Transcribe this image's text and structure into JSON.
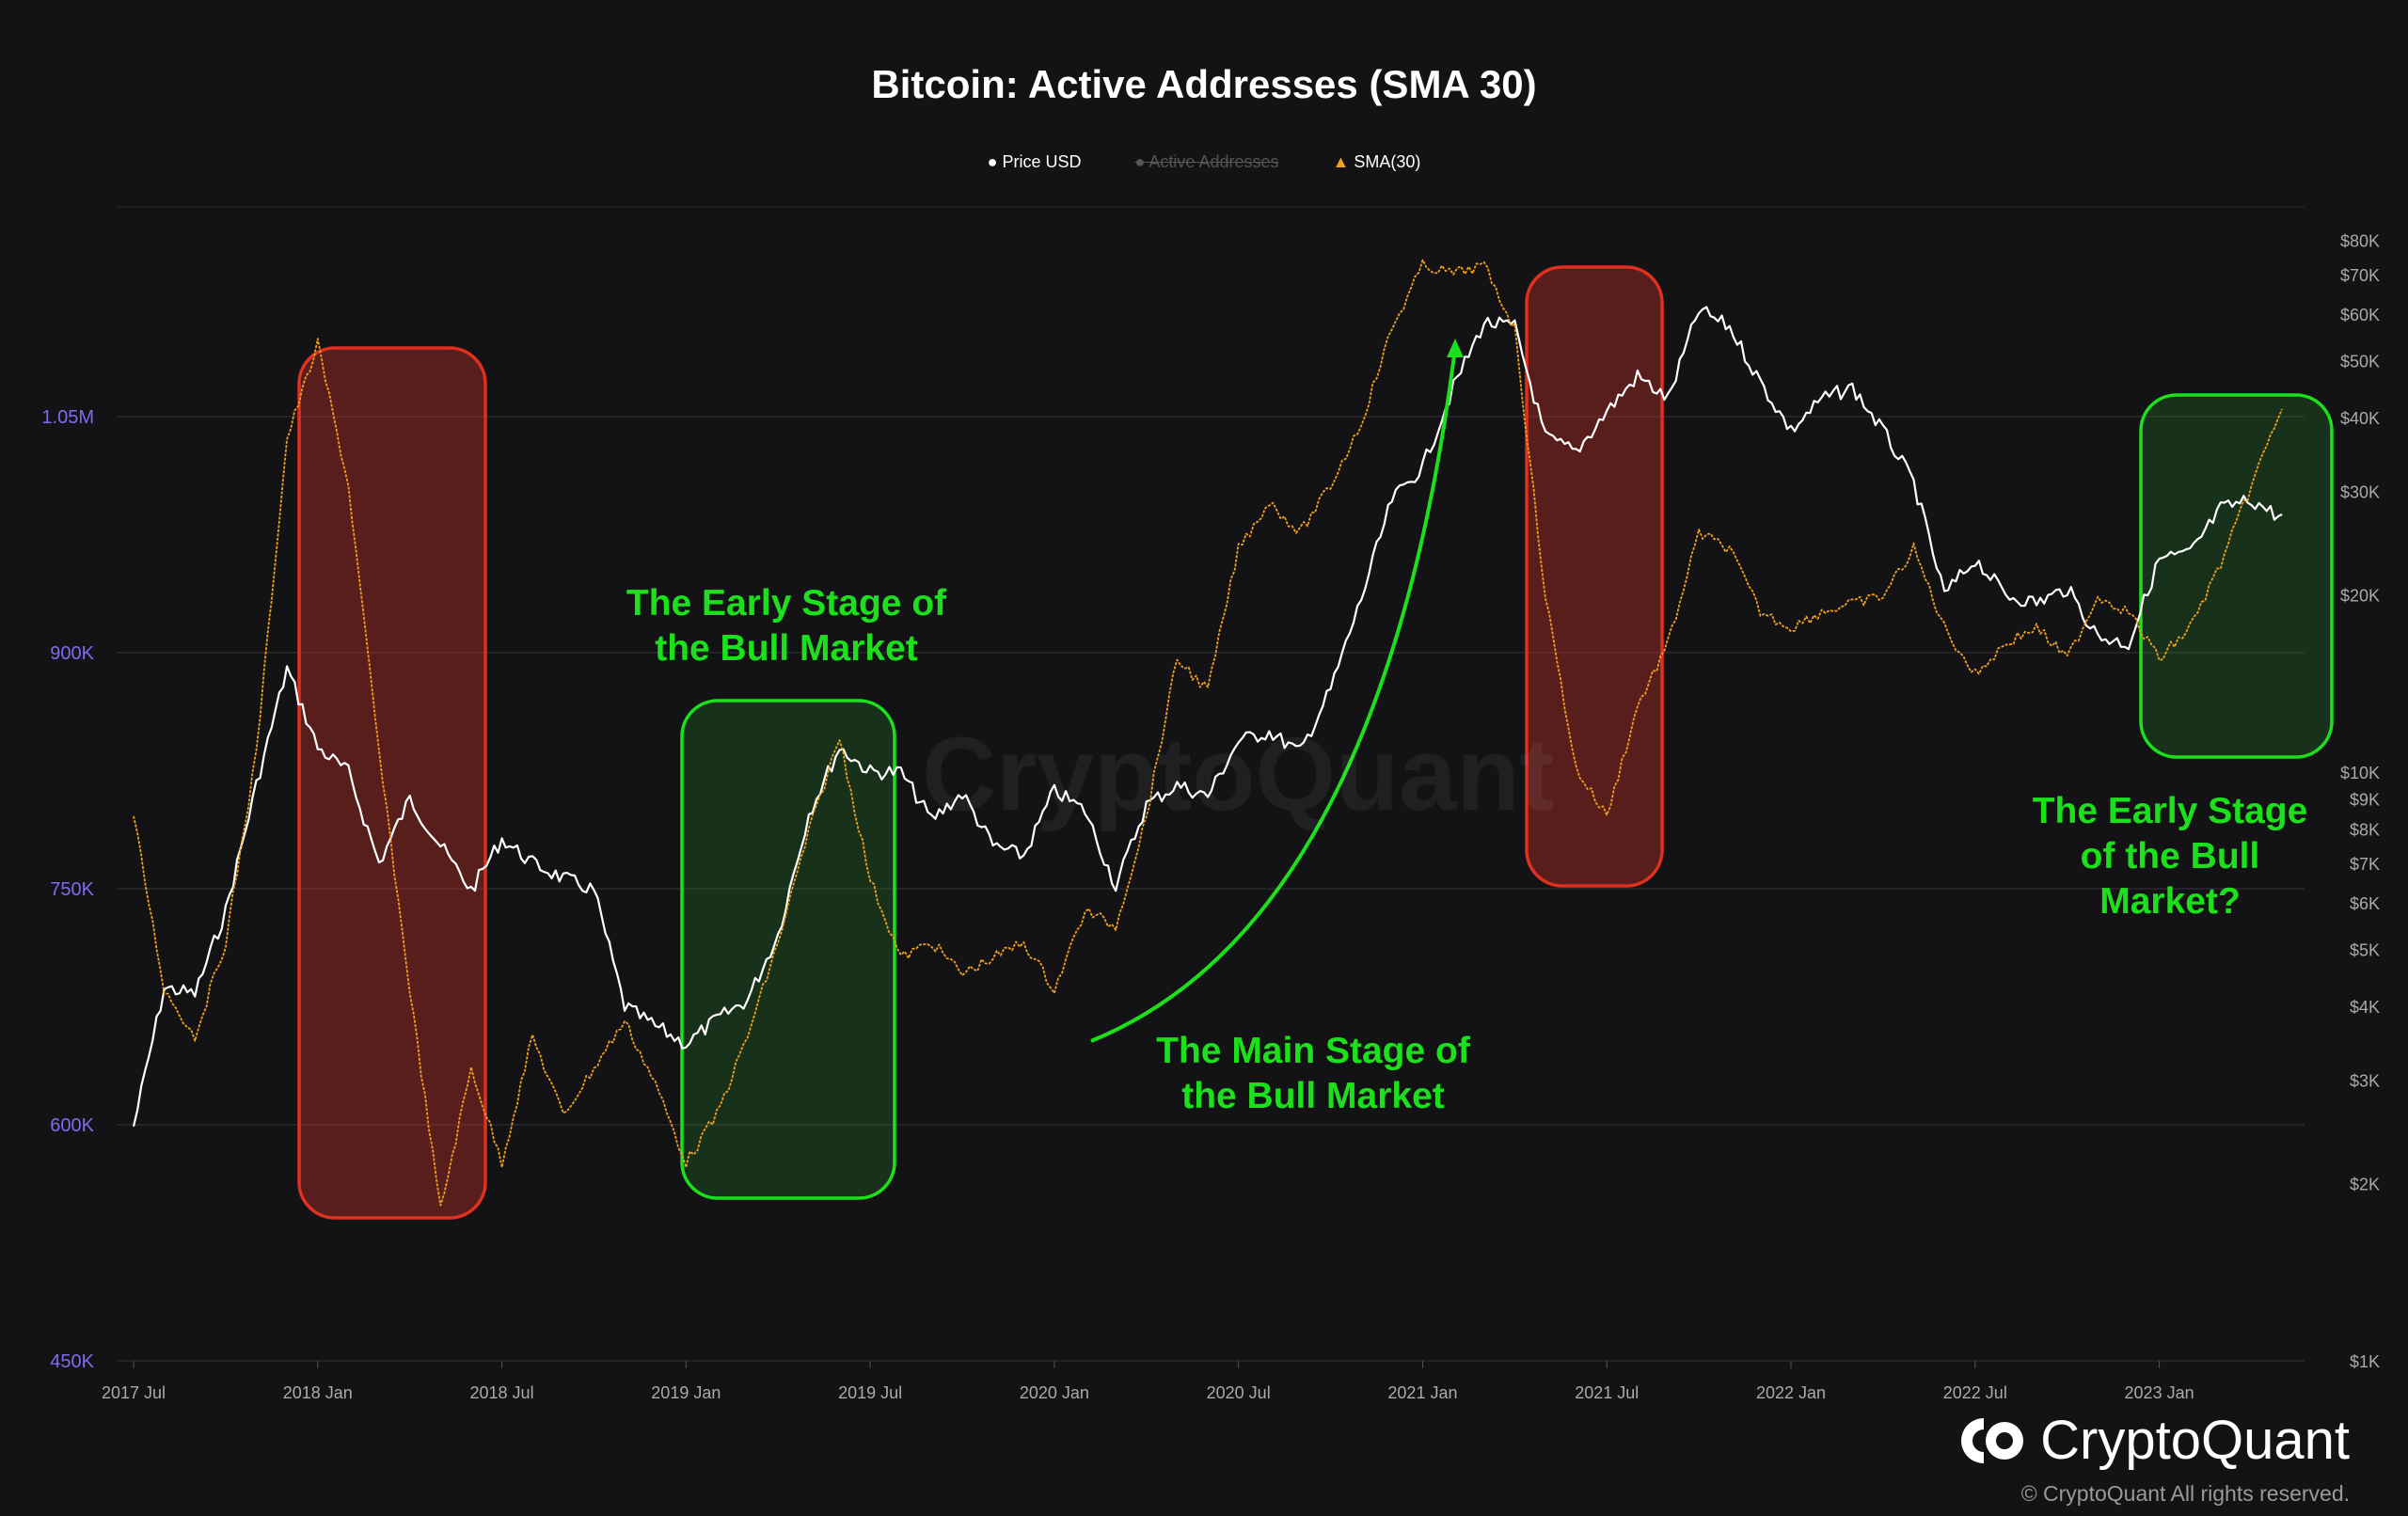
{
  "chart_data": {
    "type": "line",
    "title": "Bitcoin: Active Addresses (SMA 30)",
    "legend": [
      {
        "label": "Price USD",
        "marker": "circle",
        "color": "#ffffff",
        "enabled": true
      },
      {
        "label": "Active Addresses",
        "marker": "circle",
        "color": "#555555",
        "enabled": false
      },
      {
        "label": "SMA(30)",
        "marker": "triangle",
        "color": "#f0a020",
        "enabled": true
      }
    ],
    "legend_position": "top-center",
    "x_ticks": [
      "2017 Jul",
      "2018 Jan",
      "2018 Jul",
      "2019 Jan",
      "2019 Jul",
      "2020 Jan",
      "2020 Jul",
      "2021 Jan",
      "2021 Jul",
      "2022 Jan",
      "2022 Jul",
      "2023 Jan"
    ],
    "left_axis": {
      "ticks": [
        "450K",
        "600K",
        "750K",
        "900K",
        "1.05M"
      ],
      "values": [
        450000,
        600000,
        750000,
        900000,
        1050000
      ],
      "range": [
        450000,
        1200000
      ],
      "color": "#7b6cf0"
    },
    "right_axis": {
      "scale": "log",
      "ticks": [
        "$1K",
        "$2K",
        "$3K",
        "$4K",
        "$5K",
        "$6K",
        "$7K",
        "$8K",
        "$9K",
        "$10K",
        "$20K",
        "$30K",
        "$40K",
        "$50K",
        "$60K",
        "$70K",
        "$80K"
      ],
      "values": [
        1000,
        2000,
        3000,
        4000,
        5000,
        6000,
        7000,
        8000,
        9000,
        10000,
        20000,
        30000,
        40000,
        50000,
        60000,
        70000,
        80000
      ],
      "range": [
        1000,
        100000
      ]
    },
    "grid": true,
    "x": [
      "2017-07",
      "2017-08",
      "2017-09",
      "2017-10",
      "2017-11",
      "2017-12",
      "2018-01",
      "2018-02",
      "2018-03",
      "2018-04",
      "2018-05",
      "2018-06",
      "2018-07",
      "2018-08",
      "2018-09",
      "2018-10",
      "2018-11",
      "2018-12",
      "2019-01",
      "2019-02",
      "2019-03",
      "2019-04",
      "2019-05",
      "2019-06",
      "2019-07",
      "2019-08",
      "2019-09",
      "2019-10",
      "2019-11",
      "2019-12",
      "2020-01",
      "2020-02",
      "2020-03",
      "2020-04",
      "2020-05",
      "2020-06",
      "2020-07",
      "2020-08",
      "2020-09",
      "2020-10",
      "2020-11",
      "2020-12",
      "2021-01",
      "2021-02",
      "2021-03",
      "2021-04",
      "2021-05",
      "2021-06",
      "2021-07",
      "2021-08",
      "2021-09",
      "2021-10",
      "2021-11",
      "2021-12",
      "2022-01",
      "2022-02",
      "2022-03",
      "2022-04",
      "2022-05",
      "2022-06",
      "2022-07",
      "2022-08",
      "2022-09",
      "2022-10",
      "2022-11",
      "2022-12",
      "2023-01",
      "2023-02",
      "2023-03",
      "2023-04",
      "2023-05"
    ],
    "series": [
      {
        "name": "Price USD",
        "axis": "right",
        "color": "#ffffff",
        "values": [
          2500,
          4300,
          4200,
          5800,
          9500,
          15000,
          11000,
          10000,
          7000,
          9000,
          7500,
          6300,
          7700,
          7000,
          6600,
          6300,
          4000,
          3700,
          3450,
          3800,
          4100,
          5300,
          8500,
          11000,
          10000,
          10000,
          8300,
          9200,
          7500,
          7200,
          9300,
          8600,
          6400,
          8800,
          9500,
          9100,
          11300,
          11700,
          10800,
          13800,
          19700,
          29000,
          33000,
          45000,
          58000,
          57000,
          37000,
          35000,
          41000,
          47000,
          43000,
          61000,
          57000,
          46000,
          38000,
          43000,
          45000,
          38000,
          31000,
          20000,
          23000,
          20000,
          19400,
          20500,
          17000,
          16500,
          23000,
          23500,
          28000,
          29000,
          27000
        ]
      },
      {
        "name": "SMA(30)",
        "axis": "left",
        "color": "#f0a020",
        "values": [
          796000,
          686000,
          656000,
          716000,
          836000,
          1036000,
          1096000,
          1006000,
          836000,
          686000,
          546000,
          636000,
          576000,
          656000,
          606000,
          636000,
          666000,
          626000,
          576000,
          606000,
          656000,
          716000,
          786000,
          846000,
          756000,
          706000,
          716000,
          696000,
          706000,
          716000,
          686000,
          736000,
          726000,
          796000,
          896000,
          876000,
          966000,
          996000,
          976000,
          1006000,
          1046000,
          1106000,
          1146000,
          1141000,
          1146000,
          1106000,
          936000,
          826000,
          796000,
          866000,
          906000,
          976000,
          966000,
          926000,
          916000,
          926000,
          931000,
          936000,
          966000,
          916000,
          886000,
          906000,
          916000,
          896000,
          936000,
          926000,
          896000,
          916000,
          956000,
          1006000,
          1056000
        ]
      }
    ],
    "annotations": [
      {
        "text": [
          "The Early Stage of",
          "the Bull Market"
        ],
        "highlight": "green"
      },
      {
        "text": [
          "The Main Stage of",
          "the Bull Market"
        ],
        "highlight": "green-arrow"
      },
      {
        "text": [
          "The Early Stage",
          "of the Bull",
          "Market?"
        ],
        "highlight": "green"
      }
    ],
    "highlight_periods": [
      {
        "color": "red",
        "from": "2017-12",
        "to": "2018-06"
      },
      {
        "color": "green",
        "from": "2018-12",
        "to": "2019-07"
      },
      {
        "color": "red",
        "from": "2021-04",
        "to": "2021-08"
      },
      {
        "color": "green",
        "from": "2022-12",
        "to": "2023-06"
      }
    ]
  },
  "watermark": "CryptoQuant",
  "brand": {
    "name": "CryptoQuant",
    "copyright": "© CryptoQuant All rights reserved."
  }
}
